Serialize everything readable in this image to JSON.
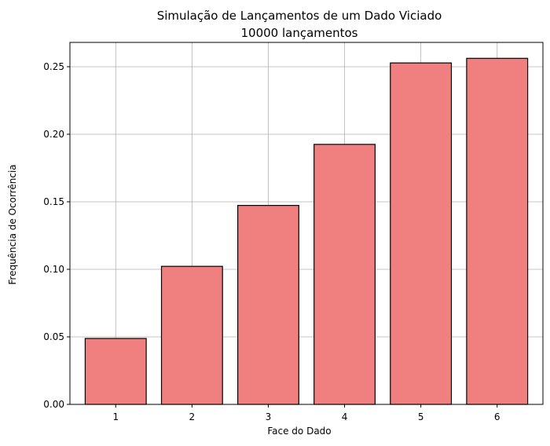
{
  "chart_data": {
    "type": "bar",
    "title": "Simulação de Lançamentos de um Dado Viciado",
    "subtitle": "10000 lançamentos",
    "xlabel": "Face do Dado",
    "ylabel": "Frequência de Ocorrência",
    "categories": [
      "1",
      "2",
      "3",
      "4",
      "5",
      "6"
    ],
    "values": [
      0.0488,
      0.1022,
      0.1473,
      0.1925,
      0.2528,
      0.2562
    ],
    "ylim": [
      0,
      0.268
    ],
    "yticks": [
      0.0,
      0.05,
      0.1,
      0.15,
      0.2,
      0.25
    ],
    "ytick_labels": [
      "0.00",
      "0.05",
      "0.10",
      "0.15",
      "0.20",
      "0.25"
    ],
    "grid": true,
    "colors": {
      "bar_fill": "#f08080",
      "bar_edge": "#000000",
      "grid": "#b0b0b0"
    }
  }
}
